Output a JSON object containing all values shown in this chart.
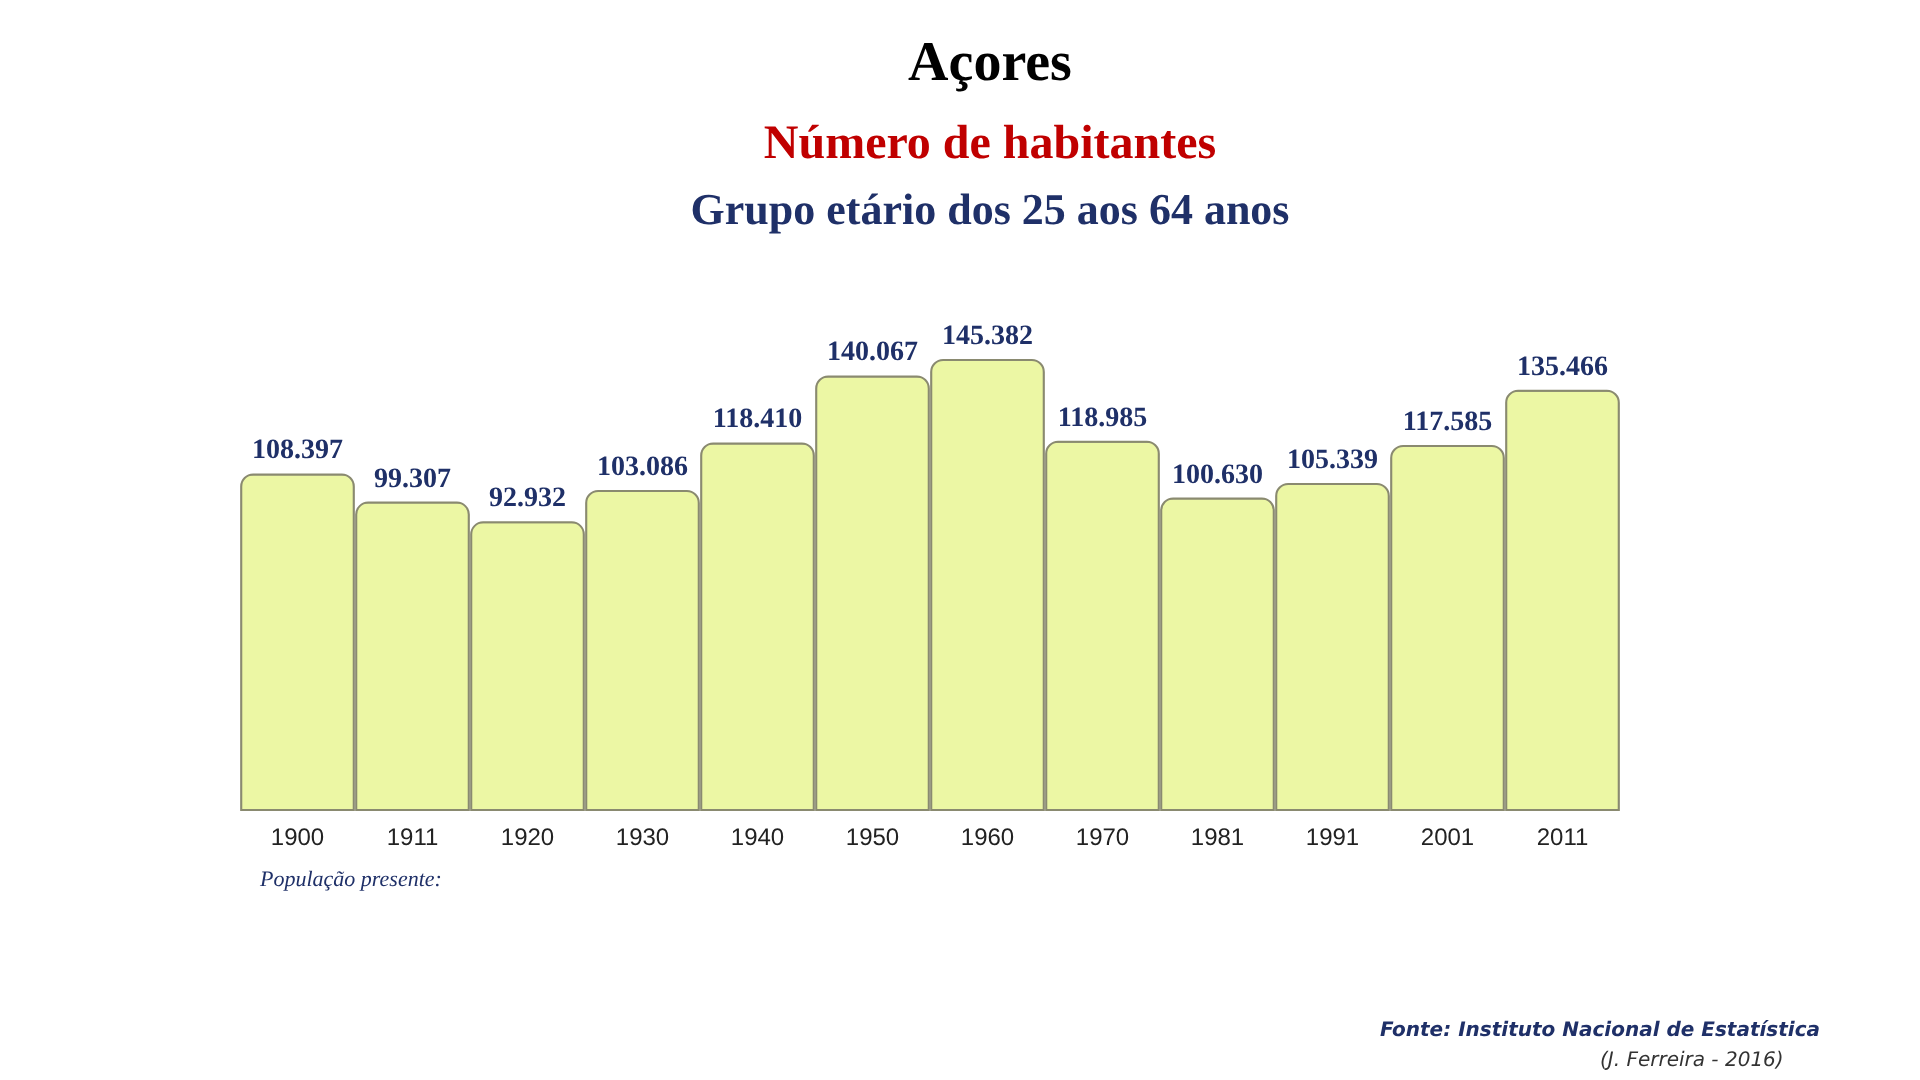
{
  "chart_data": {
    "type": "bar",
    "title": "Açores",
    "subtitle": [
      "Número de habitantes",
      "Grupo etário dos 25 aos 64 anos"
    ],
    "categories": [
      "1900",
      "1911",
      "1920",
      "1930",
      "1940",
      "1950",
      "1960",
      "1970",
      "1981",
      "1991",
      "2001",
      "2011"
    ],
    "values": [
      108397,
      99307,
      92932,
      103086,
      118410,
      140067,
      145382,
      118985,
      100630,
      105339,
      117585,
      135466
    ],
    "value_labels": [
      "108.397",
      "99.307",
      "92.932",
      "103.086",
      "118.410",
      "140.067",
      "145.382",
      "118.985",
      "100.630",
      "105.339",
      "117.585",
      "135.466"
    ],
    "color": "#ecf7a4",
    "tick_labels": "x",
    "grid": false,
    "annotations": [
      "População presente:",
      "Fonte: Instituto Nacional de Estatística",
      "(J. Ferreira - 2016)"
    ]
  }
}
